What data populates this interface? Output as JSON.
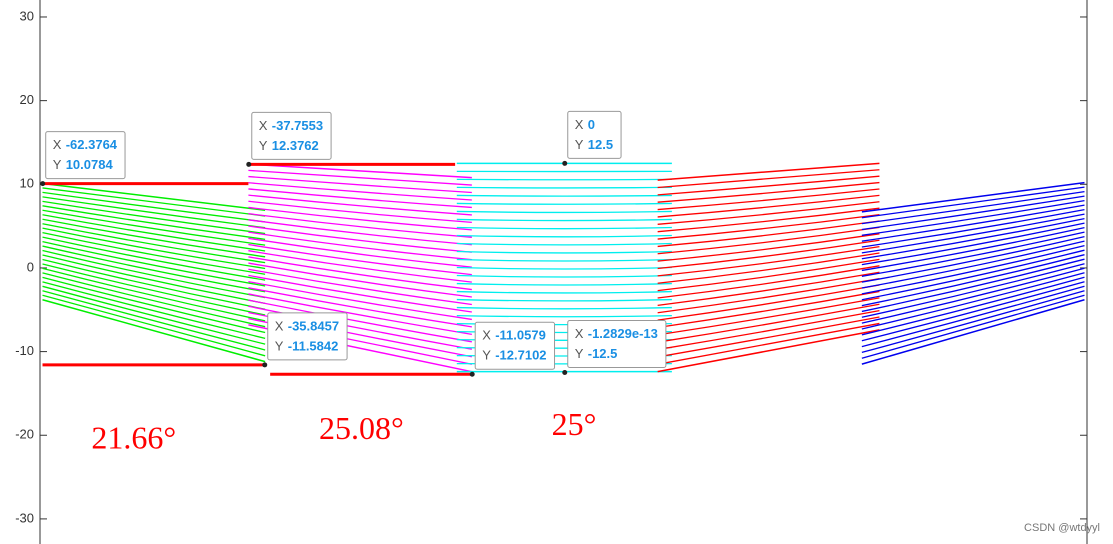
{
  "chart_data": {
    "type": "line",
    "xlim": [
      -62.7,
      62.4
    ],
    "ylim": [
      -33,
      32.03
    ],
    "yticks": [
      -30,
      -20,
      -10,
      0,
      10,
      20,
      30
    ],
    "grid": false,
    "box": true,
    "bands": [
      {
        "color": "#00ee00",
        "x": [
          -62.4,
          -35.8
        ],
        "top": [
          10.1,
          6.9
        ],
        "bottom": [
          -3.8,
          -11.2
        ]
      },
      {
        "color": "#ff00ff",
        "x": [
          -37.8,
          -11.1
        ],
        "top": [
          12.4,
          10.8
        ],
        "bottom": [
          -6.8,
          -12.4
        ]
      },
      {
        "color": "#00eeee",
        "x": [
          -12.9,
          12.8
        ],
        "top": [
          12.5,
          12.5
        ],
        "bottom": [
          -12.4,
          -12.4
        ]
      },
      {
        "color": "#ff0000",
        "x": [
          11.1,
          37.6
        ],
        "top": [
          10.5,
          12.5
        ],
        "bottom": [
          -12.4,
          -7.4
        ]
      },
      {
        "color": "#0000ee",
        "x": [
          35.5,
          62.1
        ],
        "top": [
          6.7,
          10.2
        ],
        "bottom": [
          -11.5,
          -3.8
        ]
      }
    ],
    "lines": [
      {
        "color": "#ff0000",
        "x": [
          -62.4,
          -37.8
        ],
        "y": [
          10.08,
          10.08
        ]
      },
      {
        "color": "#ff0000",
        "x": [
          -62.4,
          -35.8
        ],
        "y": [
          -11.58,
          -11.58
        ]
      },
      {
        "color": "#ff0000",
        "x": [
          -37.8,
          -13.1
        ],
        "y": [
          12.38,
          12.38
        ]
      },
      {
        "color": "#ff0000",
        "x": [
          -35.2,
          -11.1
        ],
        "y": [
          -12.71,
          -12.71
        ]
      }
    ],
    "tip_labels": [
      "X",
      "Y"
    ],
    "datatips": [
      {
        "x": -62.3764,
        "y": 10.0784
      },
      {
        "x": -37.7553,
        "y": 12.3762
      },
      {
        "x": 0,
        "y": 12.5
      },
      {
        "x": -35.8457,
        "y": -11.5842
      },
      {
        "x": -11.0579,
        "y": -12.7102
      },
      {
        "x": {
          "value": -1.2829e-13,
          "label": "-1.2829e-13"
        },
        "y": -12.5
      }
    ],
    "annotations": [
      {
        "text": "21.66°",
        "x": -51.5,
        "y": -20.7
      },
      {
        "text": "25.08°",
        "x": -24.3,
        "y": -19.6
      },
      {
        "text": "25°",
        "x": 1.1,
        "y": -19.1
      }
    ],
    "watermark": "CSDN @wtdyyl"
  }
}
